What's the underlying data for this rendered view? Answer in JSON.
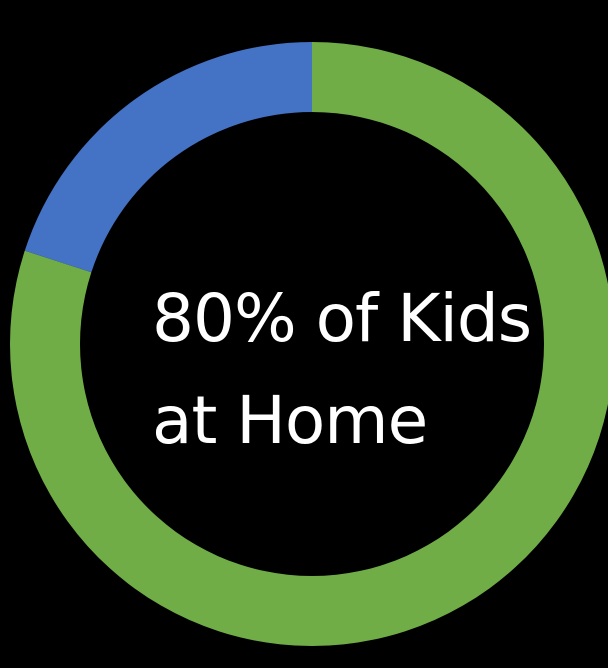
{
  "chart_data": {
    "type": "pie",
    "variant": "donut",
    "slices": [
      {
        "value": 80,
        "color": "#70AD47"
      },
      {
        "value": 20,
        "color": "#4472C4"
      }
    ],
    "center_label": {
      "line1": "80% of Kids",
      "line2": "at Home"
    },
    "legend": "none"
  },
  "colors": {
    "background": "#000000",
    "text": "#FFFFFF"
  }
}
